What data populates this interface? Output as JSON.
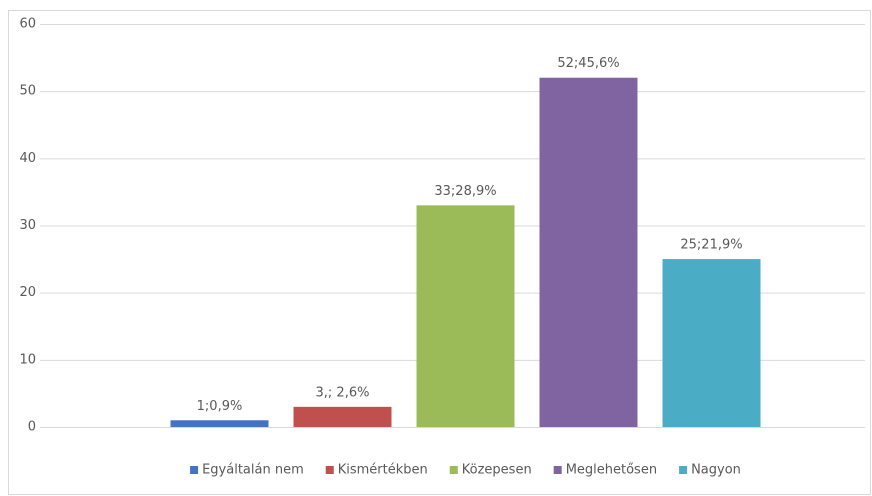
{
  "chart_data": {
    "type": "bar",
    "categories": [
      null
    ],
    "series": [
      {
        "name": "Egyáltalán nem",
        "color": "#4472c4",
        "values": [
          1
        ],
        "value_labels": [
          "1;0,9%"
        ]
      },
      {
        "name": "Kismértékben",
        "color": "#c0504d",
        "values": [
          3
        ],
        "value_labels": [
          "3,; 2,6%"
        ]
      },
      {
        "name": "Közepesen",
        "color": "#9bbb59",
        "values": [
          33
        ],
        "value_labels": [
          "33;28,9%"
        ]
      },
      {
        "name": "Meglehetősen",
        "color": "#8064a2",
        "values": [
          52
        ],
        "value_labels": [
          "52;45,6%"
        ]
      },
      {
        "name": "Nagyon",
        "color": "#4bacc6",
        "values": [
          25
        ],
        "value_labels": [
          "25;21,9%"
        ]
      }
    ],
    "ylim": [
      0,
      60
    ],
    "yticks": [
      0,
      10,
      20,
      30,
      40,
      50,
      60
    ],
    "grid": true,
    "legend": "bottom"
  }
}
